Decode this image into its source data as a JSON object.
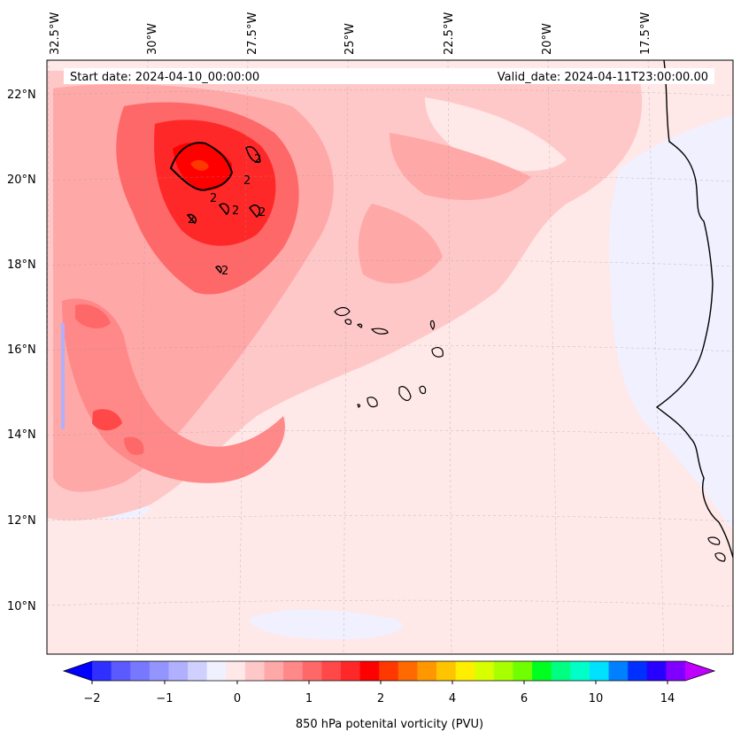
{
  "header": {
    "start_date": "Start date: 2024-04-10_00:00:00",
    "valid_date": "Valid_date: 2024-04-11T23:00:00.00"
  },
  "axes": {
    "longitude_labels": [
      "32.5°W",
      "30°W",
      "27.5°W",
      "25°W",
      "22.5°W",
      "20°W",
      "17.5°W"
    ],
    "latitude_labels": [
      "22°N",
      "20°N",
      "18°N",
      "16°N",
      "14°N",
      "12°N",
      "10°N"
    ]
  },
  "colorbar": {
    "label": "850 hPa potenital vorticity (PVU)",
    "tick_labels": [
      "−2",
      "−1",
      "0",
      "1",
      "2",
      "4",
      "6",
      "10",
      "14"
    ],
    "colors": [
      "#0000ff",
      "#2f2fff",
      "#5a5aff",
      "#7878ff",
      "#9494ff",
      "#b0b0ff",
      "#d0d0ff",
      "#f0f0ff",
      "#ffe8e8",
      "#ffc8c8",
      "#ffa8a8",
      "#ff8888",
      "#ff6868",
      "#ff4848",
      "#ff2828",
      "#ff0000",
      "#ff3800",
      "#ff6a00",
      "#ff9800",
      "#ffc400",
      "#ffee00",
      "#d8ff00",
      "#a8ff00",
      "#70ff00",
      "#00ff20",
      "#00ff80",
      "#00ffc8",
      "#00e0ff",
      "#0080ff",
      "#0030ff",
      "#2800ff",
      "#8000ff",
      "#c000ff"
    ]
  },
  "contour_labels": [
    "2",
    "2",
    "2",
    "2",
    "2",
    "2",
    "2"
  ]
}
